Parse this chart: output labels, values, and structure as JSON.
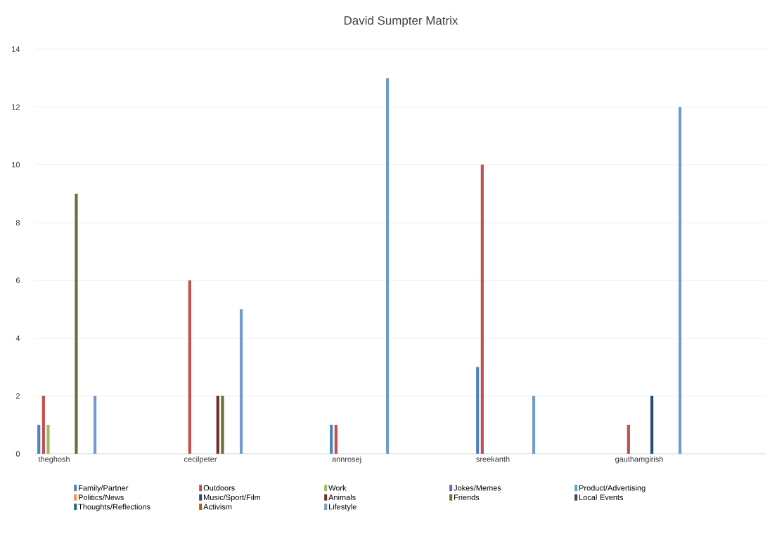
{
  "chart_data": {
    "type": "bar",
    "title": "David Sumpter Matrix",
    "categories": [
      "theghosh",
      "cecilpeter",
      "annrosej",
      "sreekanth",
      "gauthamgirish"
    ],
    "series": [
      {
        "name": "Family/Partner",
        "color": "#4f81bd",
        "values": [
          1,
          0,
          1,
          3,
          0
        ]
      },
      {
        "name": "Outdoors",
        "color": "#c0504d",
        "values": [
          2,
          6,
          1,
          10,
          1
        ]
      },
      {
        "name": "Work",
        "color": "#9bbb59",
        "values": [
          1,
          0,
          0,
          0,
          0
        ]
      },
      {
        "name": "Jokes/Memes",
        "color": "#8064a2",
        "values": [
          0,
          0,
          0,
          0,
          0
        ]
      },
      {
        "name": "Product/Advertising",
        "color": "#4bacc6",
        "values": [
          0,
          0,
          0,
          0,
          0
        ]
      },
      {
        "name": "Politics/News",
        "color": "#f79646",
        "values": [
          0,
          0,
          0,
          0,
          0
        ]
      },
      {
        "name": "Music/Sport/Film",
        "color": "#2c4d75",
        "values": [
          0,
          0,
          0,
          0,
          2
        ]
      },
      {
        "name": "Animals",
        "color": "#772c2a",
        "values": [
          0,
          2,
          0,
          0,
          0
        ]
      },
      {
        "name": "Friends",
        "color": "#5f7530",
        "values": [
          9,
          2,
          0,
          0,
          0
        ]
      },
      {
        "name": "Local Events",
        "color": "#4d3b62",
        "values": [
          0,
          0,
          0,
          0,
          0
        ]
      },
      {
        "name": "Thoughts/Reflections",
        "color": "#276a7c",
        "values": [
          0,
          0,
          0,
          0,
          0
        ]
      },
      {
        "name": "Activism",
        "color": "#b65708",
        "values": [
          0,
          0,
          0,
          0,
          0
        ]
      },
      {
        "name": "Lifestyle",
        "color": "#729aca",
        "values": [
          2,
          5,
          13,
          2,
          12
        ]
      }
    ],
    "ylim": [
      0,
      14
    ],
    "yticks": [
      0,
      2,
      4,
      6,
      8,
      10,
      12,
      14
    ],
    "grid": "y",
    "legend": "bottom"
  }
}
